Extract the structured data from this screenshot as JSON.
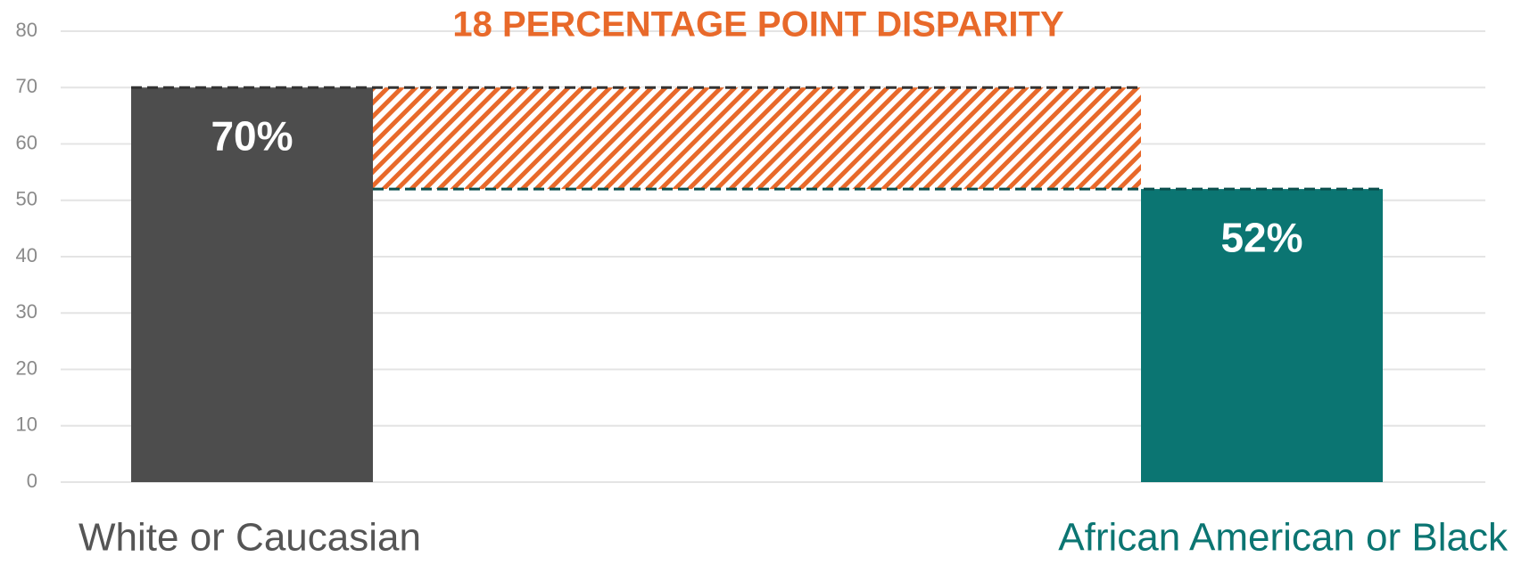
{
  "chart_data": {
    "type": "bar",
    "annotation": "18 PERCENTAGE POINT DISPARITY",
    "annotation_color": "#e8692a",
    "categories": [
      "White or Caucasian",
      "African American or Black"
    ],
    "values": [
      70,
      52
    ],
    "value_labels": [
      "70%",
      "52%"
    ],
    "colors": [
      "#4d4d4d",
      "#0b7572"
    ],
    "label_colors": [
      "#555555",
      "#0b7572"
    ],
    "ylim": [
      0,
      80
    ],
    "yticks": [
      0,
      10,
      20,
      30,
      40,
      50,
      60,
      70,
      80
    ],
    "grid": true
  }
}
